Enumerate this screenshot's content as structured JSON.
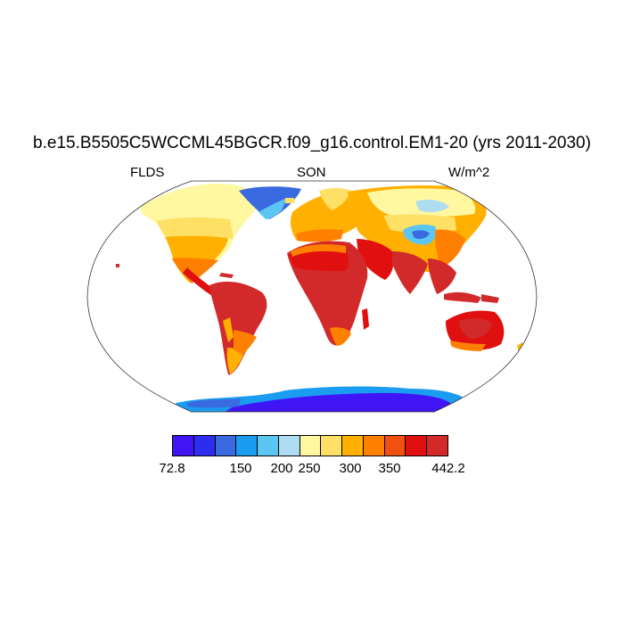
{
  "title": "b.e15.B5505C5WCCML45BGCR.f09_g16.control.EM1-20 (yrs 2011-2030)",
  "left_label": "FLDS",
  "center_label": "SON",
  "right_label": "W/m^2",
  "projection": "Robinson",
  "colorbar": {
    "colors": [
      "#3f15f5",
      "#2d2df0",
      "#3a6ae0",
      "#1a9df0",
      "#5cc6f2",
      "#aeddf2",
      "#fff8a0",
      "#ffe066",
      "#ffb000",
      "#ff8000",
      "#f05010",
      "#e01010",
      "#d22a2a"
    ],
    "labels": [
      "72.8",
      "150",
      "200",
      "250",
      "300",
      "350",
      "442.2"
    ]
  },
  "regions": [
    {
      "name": "Greenland",
      "level": "150-175"
    },
    {
      "name": "Antarctica",
      "level": "72.8-125"
    },
    {
      "name": "North America (north)",
      "level": "250-300"
    },
    {
      "name": "North America (south)",
      "level": "325-375"
    },
    {
      "name": "South America",
      "level": "400-442.2"
    },
    {
      "name": "Africa",
      "level": "400-442.2"
    },
    {
      "name": "Europe",
      "level": "300-350"
    },
    {
      "name": "Siberia",
      "level": "250-300"
    },
    {
      "name": "Tibetan Plateau",
      "level": "150-225"
    },
    {
      "name": "South Asia",
      "level": "400-442.2"
    },
    {
      "name": "Australia",
      "level": "375-442.2"
    }
  ]
}
